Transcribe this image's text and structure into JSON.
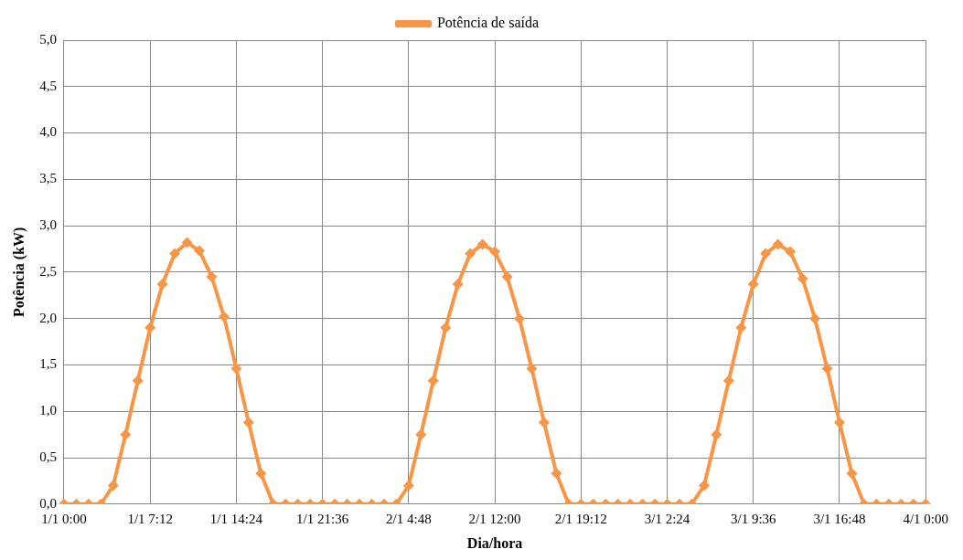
{
  "chart_data": {
    "type": "line",
    "xlabel": "Dia/hora",
    "ylabel": "Potência (kW)",
    "categories": [
      "1/1 0:00",
      null,
      null,
      null,
      null,
      null,
      null,
      "1/1 7:12",
      null,
      null,
      null,
      null,
      null,
      null,
      "1/1 14:24",
      null,
      null,
      null,
      null,
      null,
      null,
      "1/1 21:36",
      null,
      null,
      null,
      null,
      null,
      null,
      "2/1 4:48",
      null,
      null,
      null,
      null,
      null,
      null,
      "2/1 12:00",
      null,
      null,
      null,
      null,
      null,
      null,
      "2/1 19:12",
      null,
      null,
      null,
      null,
      null,
      null,
      "3/1 2:24",
      null,
      null,
      null,
      null,
      null,
      null,
      "3/1 9:36",
      null,
      null,
      null,
      null,
      null,
      null,
      "3/1 16:48",
      null,
      null,
      null,
      null,
      null,
      null,
      "4/1 0:00"
    ],
    "series": [
      {
        "name": "Potência de saída",
        "color": "#f79646",
        "values": [
          0,
          0,
          0,
          0,
          0.2,
          0.75,
          1.33,
          1.9,
          2.37,
          2.7,
          2.82,
          2.73,
          2.45,
          2.02,
          1.46,
          0.88,
          0.33,
          0,
          0,
          0,
          0,
          0,
          0,
          0,
          0,
          0,
          0,
          0,
          0.2,
          0.75,
          1.33,
          1.9,
          2.37,
          2.7,
          2.8,
          2.72,
          2.45,
          2.0,
          1.46,
          0.88,
          0.33,
          0,
          0,
          0,
          0,
          0,
          0,
          0,
          0,
          0,
          0,
          0,
          0.2,
          0.75,
          1.33,
          1.9,
          2.37,
          2.7,
          2.8,
          2.72,
          2.43,
          2.0,
          1.46,
          0.88,
          0.33,
          0,
          0,
          0,
          0,
          0,
          0
        ]
      }
    ],
    "ylim": [
      0,
      5
    ],
    "yticks": [
      {
        "value": 0,
        "label": "0,0"
      },
      {
        "value": 0.5,
        "label": "0,5"
      },
      {
        "value": 1,
        "label": "1,0"
      },
      {
        "value": 1.5,
        "label": "1,5"
      },
      {
        "value": 2,
        "label": "2,0"
      },
      {
        "value": 2.5,
        "label": "2,5"
      },
      {
        "value": 3,
        "label": "3,0"
      },
      {
        "value": 3.5,
        "label": "3,5"
      },
      {
        "value": 4,
        "label": "4,0"
      },
      {
        "value": 4.5,
        "label": "4,5"
      },
      {
        "value": 5,
        "label": "5,0"
      }
    ],
    "grid": true,
    "legend": "top",
    "marker": "diamond",
    "line_style": "solid"
  }
}
